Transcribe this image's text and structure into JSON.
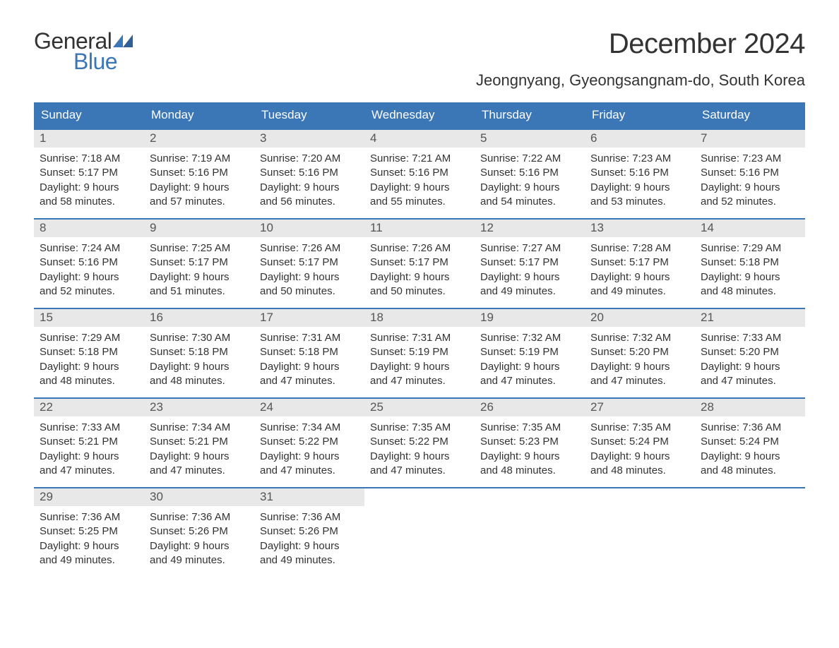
{
  "logo": {
    "general": "General",
    "blue": "Blue",
    "icon_color": "#3b76b6"
  },
  "header": {
    "title": "December 2024",
    "subtitle": "Jeongnyang, Gyeongsangnam-do, South Korea"
  },
  "colors": {
    "header_bg": "#3b76b6",
    "header_text": "#ffffff",
    "daynum_bg": "#e8e8e8",
    "daynum_text": "#555555",
    "body_text": "#333333",
    "week_border": "#3b76b6",
    "page_bg": "#ffffff"
  },
  "days_of_week": [
    "Sunday",
    "Monday",
    "Tuesday",
    "Wednesday",
    "Thursday",
    "Friday",
    "Saturday"
  ],
  "labels": {
    "sunrise": "Sunrise: ",
    "sunset": "Sunset: ",
    "daylight": "Daylight: "
  },
  "weeks": [
    [
      {
        "n": "1",
        "sr": "7:18 AM",
        "ss": "5:17 PM",
        "dl1": "9 hours",
        "dl2": "and 58 minutes."
      },
      {
        "n": "2",
        "sr": "7:19 AM",
        "ss": "5:16 PM",
        "dl1": "9 hours",
        "dl2": "and 57 minutes."
      },
      {
        "n": "3",
        "sr": "7:20 AM",
        "ss": "5:16 PM",
        "dl1": "9 hours",
        "dl2": "and 56 minutes."
      },
      {
        "n": "4",
        "sr": "7:21 AM",
        "ss": "5:16 PM",
        "dl1": "9 hours",
        "dl2": "and 55 minutes."
      },
      {
        "n": "5",
        "sr": "7:22 AM",
        "ss": "5:16 PM",
        "dl1": "9 hours",
        "dl2": "and 54 minutes."
      },
      {
        "n": "6",
        "sr": "7:23 AM",
        "ss": "5:16 PM",
        "dl1": "9 hours",
        "dl2": "and 53 minutes."
      },
      {
        "n": "7",
        "sr": "7:23 AM",
        "ss": "5:16 PM",
        "dl1": "9 hours",
        "dl2": "and 52 minutes."
      }
    ],
    [
      {
        "n": "8",
        "sr": "7:24 AM",
        "ss": "5:16 PM",
        "dl1": "9 hours",
        "dl2": "and 52 minutes."
      },
      {
        "n": "9",
        "sr": "7:25 AM",
        "ss": "5:17 PM",
        "dl1": "9 hours",
        "dl2": "and 51 minutes."
      },
      {
        "n": "10",
        "sr": "7:26 AM",
        "ss": "5:17 PM",
        "dl1": "9 hours",
        "dl2": "and 50 minutes."
      },
      {
        "n": "11",
        "sr": "7:26 AM",
        "ss": "5:17 PM",
        "dl1": "9 hours",
        "dl2": "and 50 minutes."
      },
      {
        "n": "12",
        "sr": "7:27 AM",
        "ss": "5:17 PM",
        "dl1": "9 hours",
        "dl2": "and 49 minutes."
      },
      {
        "n": "13",
        "sr": "7:28 AM",
        "ss": "5:17 PM",
        "dl1": "9 hours",
        "dl2": "and 49 minutes."
      },
      {
        "n": "14",
        "sr": "7:29 AM",
        "ss": "5:18 PM",
        "dl1": "9 hours",
        "dl2": "and 48 minutes."
      }
    ],
    [
      {
        "n": "15",
        "sr": "7:29 AM",
        "ss": "5:18 PM",
        "dl1": "9 hours",
        "dl2": "and 48 minutes."
      },
      {
        "n": "16",
        "sr": "7:30 AM",
        "ss": "5:18 PM",
        "dl1": "9 hours",
        "dl2": "and 48 minutes."
      },
      {
        "n": "17",
        "sr": "7:31 AM",
        "ss": "5:18 PM",
        "dl1": "9 hours",
        "dl2": "and 47 minutes."
      },
      {
        "n": "18",
        "sr": "7:31 AM",
        "ss": "5:19 PM",
        "dl1": "9 hours",
        "dl2": "and 47 minutes."
      },
      {
        "n": "19",
        "sr": "7:32 AM",
        "ss": "5:19 PM",
        "dl1": "9 hours",
        "dl2": "and 47 minutes."
      },
      {
        "n": "20",
        "sr": "7:32 AM",
        "ss": "5:20 PM",
        "dl1": "9 hours",
        "dl2": "and 47 minutes."
      },
      {
        "n": "21",
        "sr": "7:33 AM",
        "ss": "5:20 PM",
        "dl1": "9 hours",
        "dl2": "and 47 minutes."
      }
    ],
    [
      {
        "n": "22",
        "sr": "7:33 AM",
        "ss": "5:21 PM",
        "dl1": "9 hours",
        "dl2": "and 47 minutes."
      },
      {
        "n": "23",
        "sr": "7:34 AM",
        "ss": "5:21 PM",
        "dl1": "9 hours",
        "dl2": "and 47 minutes."
      },
      {
        "n": "24",
        "sr": "7:34 AM",
        "ss": "5:22 PM",
        "dl1": "9 hours",
        "dl2": "and 47 minutes."
      },
      {
        "n": "25",
        "sr": "7:35 AM",
        "ss": "5:22 PM",
        "dl1": "9 hours",
        "dl2": "and 47 minutes."
      },
      {
        "n": "26",
        "sr": "7:35 AM",
        "ss": "5:23 PM",
        "dl1": "9 hours",
        "dl2": "and 48 minutes."
      },
      {
        "n": "27",
        "sr": "7:35 AM",
        "ss": "5:24 PM",
        "dl1": "9 hours",
        "dl2": "and 48 minutes."
      },
      {
        "n": "28",
        "sr": "7:36 AM",
        "ss": "5:24 PM",
        "dl1": "9 hours",
        "dl2": "and 48 minutes."
      }
    ],
    [
      {
        "n": "29",
        "sr": "7:36 AM",
        "ss": "5:25 PM",
        "dl1": "9 hours",
        "dl2": "and 49 minutes."
      },
      {
        "n": "30",
        "sr": "7:36 AM",
        "ss": "5:26 PM",
        "dl1": "9 hours",
        "dl2": "and 49 minutes."
      },
      {
        "n": "31",
        "sr": "7:36 AM",
        "ss": "5:26 PM",
        "dl1": "9 hours",
        "dl2": "and 49 minutes."
      },
      null,
      null,
      null,
      null
    ]
  ]
}
